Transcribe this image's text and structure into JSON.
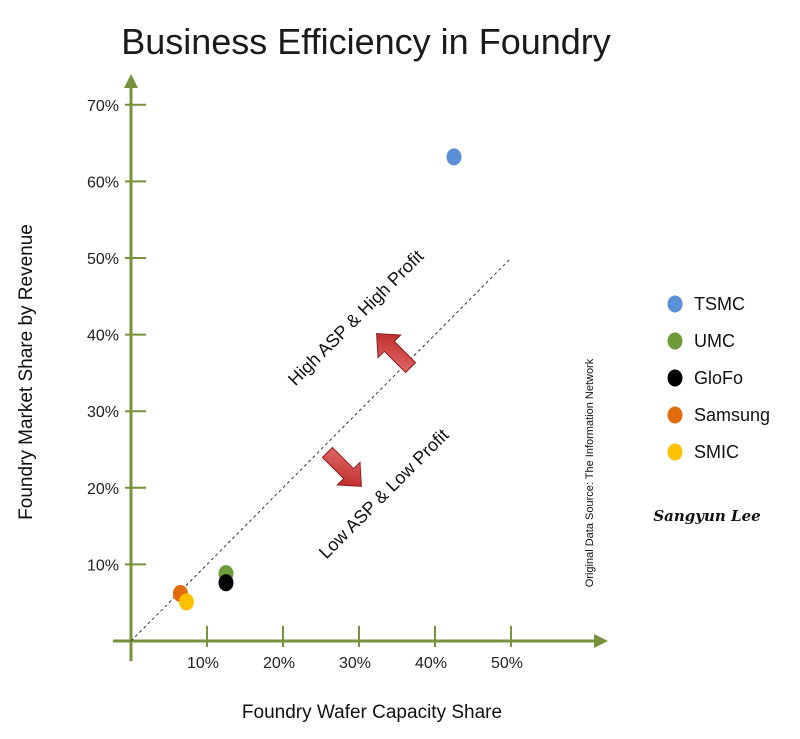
{
  "chart_data": {
    "type": "scatter",
    "title": "Business Efficiency in Foundry",
    "xlabel": "Foundry Wafer Capacity Share",
    "ylabel": "Foundry Market Share by Revenue",
    "xlim": [
      0,
      60
    ],
    "ylim": [
      0,
      70
    ],
    "xticks": [
      "10%",
      "20%",
      "30%",
      "40%",
      "50%"
    ],
    "yticks": [
      "10%",
      "20%",
      "30%",
      "40%",
      "50%",
      "60%",
      "70%"
    ],
    "grid": false,
    "legend": "right",
    "series": [
      {
        "name": "TSMC",
        "color": "#5b8fd6",
        "x": 42.5,
        "y": 63.2
      },
      {
        "name": "UMC",
        "color": "#6f9a3a",
        "x": 12.5,
        "y": 8.8
      },
      {
        "name": "GloFo",
        "color": "#000000",
        "x": 12.5,
        "y": 7.6
      },
      {
        "name": "Samsung",
        "color": "#e36c0a",
        "x": 6.5,
        "y": 6.2
      },
      {
        "name": "SMIC",
        "color": "#ffc000",
        "x": 7.3,
        "y": 5.1
      }
    ],
    "reference_line": {
      "x": [
        0,
        50
      ],
      "y": [
        0,
        50
      ]
    },
    "annotations": {
      "upper": "High ASP & High Profit",
      "lower": "Low ASP & Low Profit"
    },
    "source": "Original Data Source: The Information Network",
    "signature": "Sangyun Lee",
    "axis_color": "#76923c",
    "arrow_color": "#c0392b"
  }
}
